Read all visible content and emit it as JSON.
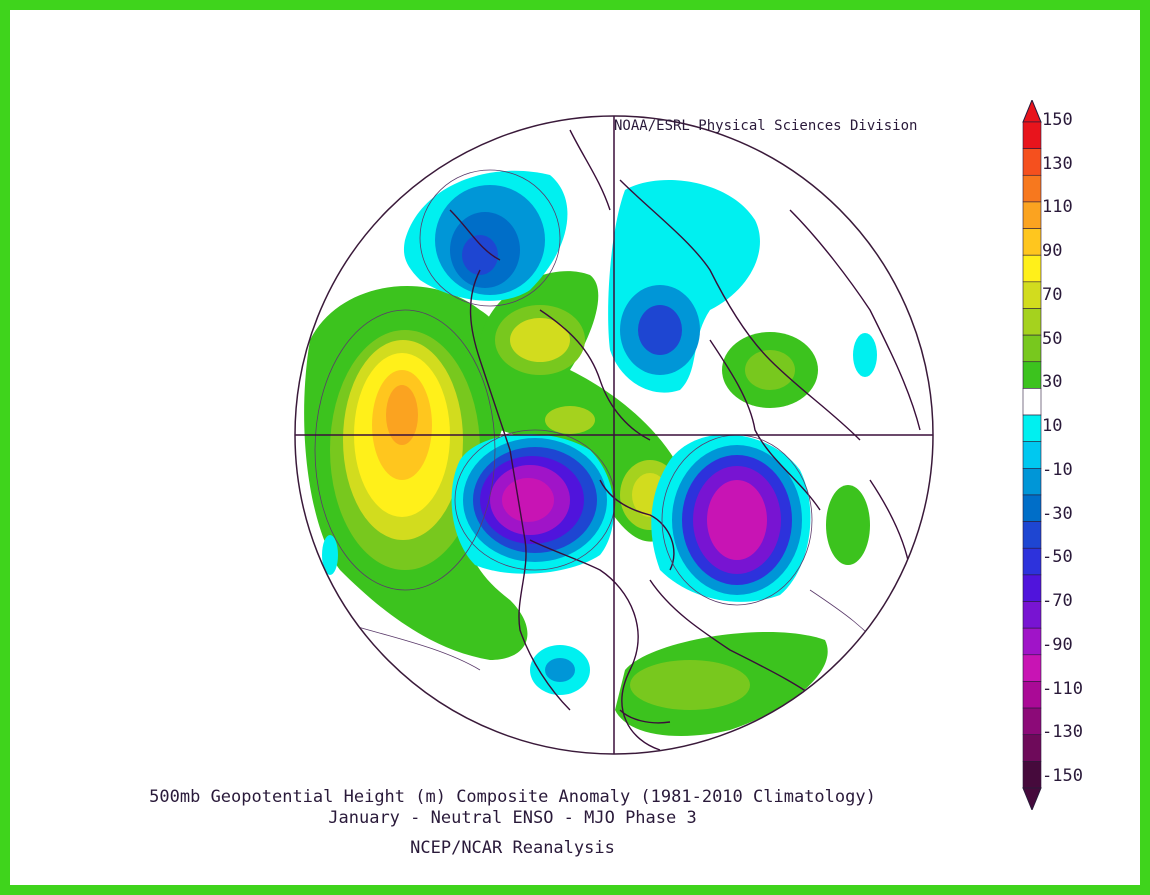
{
  "credit": "NOAA/ESRL Physical Sciences Division",
  "title": {
    "line1": "500mb Geopotential Height (m) Composite Anomaly (1981-2010 Climatology)",
    "line2": "January - Neutral ENSO - MJO Phase 3",
    "line3": "NCEP/NCAR Reanalysis"
  },
  "colorbar": {
    "labels": [
      "150",
      "130",
      "110",
      "90",
      "70",
      "50",
      "30",
      "10",
      "-10",
      "-30",
      "-50",
      "-70",
      "-90",
      "-110",
      "-130",
      "-150"
    ],
    "colors": [
      "#e8141c",
      "#f5501e",
      "#f7781e",
      "#fba320",
      "#ffc61e",
      "#fff01a",
      "#d2dc1e",
      "#a5d21e",
      "#78c81e",
      "#3cc31e",
      "#ffffff",
      "#00f0f0",
      "#00c8f0",
      "#0096d7",
      "#006ec8",
      "#1e46d2",
      "#2d32dc",
      "#5014dc",
      "#7814d2",
      "#a014c8",
      "#c814b4",
      "#aa0a96",
      "#8c0a78",
      "#6e0a5a",
      "#460a3c"
    ]
  },
  "map_features": {
    "anomalies": [
      {
        "kind": "positive",
        "peak": 90,
        "color": "#f7a31e"
      },
      {
        "kind": "positive",
        "peak": 50,
        "color": "#fff01a"
      },
      {
        "kind": "negative",
        "peak": -110,
        "color": "#c814b4"
      },
      {
        "kind": "negative",
        "peak": -110,
        "color": "#c814b4"
      },
      {
        "kind": "negative",
        "peak": -70,
        "color": "#1e46d2"
      },
      {
        "kind": "negative",
        "peak": -50,
        "color": "#0096d7"
      },
      {
        "kind": "positive",
        "peak": 30,
        "color": "#78c81e"
      },
      {
        "kind": "positive",
        "peak": 30,
        "color": "#78c81e"
      }
    ]
  }
}
